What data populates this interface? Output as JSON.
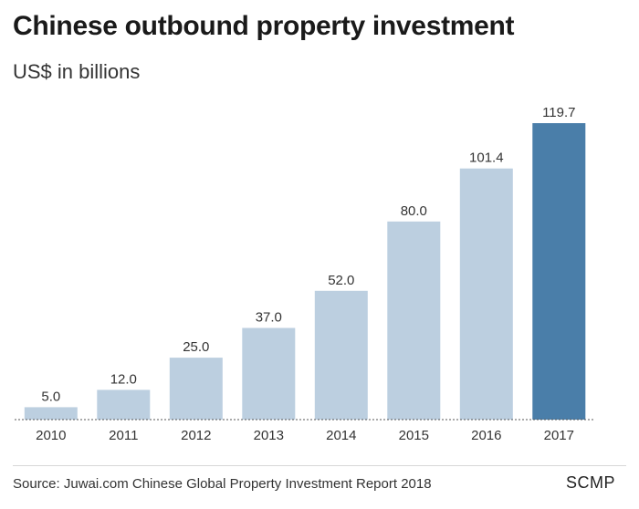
{
  "header": {
    "title": "Chinese outbound property investment",
    "subtitle": "US$ in billions"
  },
  "footer": {
    "source": "Source: Juwai.com Chinese Global Property Investment Report 2018",
    "brand": "SCMP"
  },
  "colors": {
    "bar": "#bccfe0",
    "highlight": "#4a7ea9",
    "baseline": "#555555",
    "text": "#333333"
  },
  "chart_data": {
    "type": "bar",
    "title": "Chinese outbound property investment",
    "subtitle": "US$ in billions",
    "xlabel": "",
    "ylabel": "",
    "categories": [
      "2010",
      "2011",
      "2012",
      "2013",
      "2014",
      "2015",
      "2016",
      "2017"
    ],
    "values": [
      5.0,
      12.0,
      25.0,
      37.0,
      52.0,
      80.0,
      101.4,
      119.7
    ],
    "value_labels": [
      "5.0",
      "12.0",
      "25.0",
      "37.0",
      "52.0",
      "80.0",
      "101.4",
      "119.7"
    ],
    "ylim": [
      0,
      119.7
    ],
    "highlight_category": "2017",
    "grid": false,
    "legend": "none"
  }
}
